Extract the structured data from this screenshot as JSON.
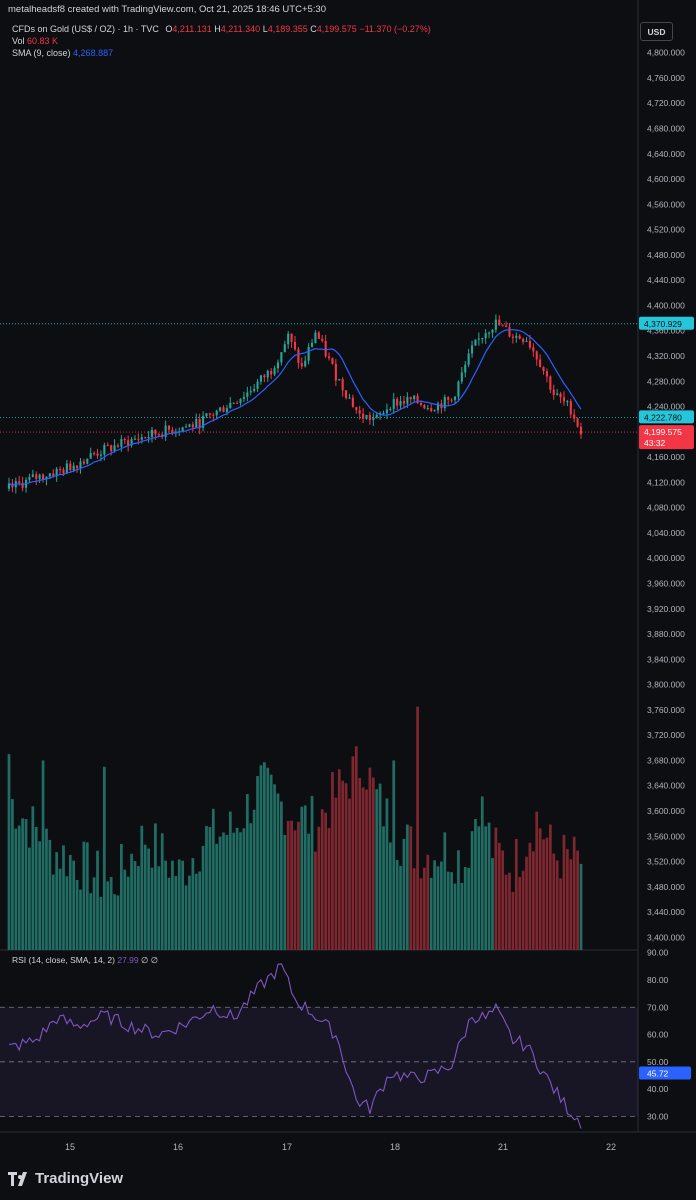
{
  "credit": "metalheadsf8 created with TradingView.com, Oct 21, 2025 18:46 UTC+5:30",
  "symbol": {
    "title": "CFDs on Gold (US$ / OZ) · 1h · TVC",
    "open_label": "O",
    "open": "4,211.131",
    "high_label": "H",
    "high": "4,211.340",
    "low_label": "L",
    "low": "4,189.355",
    "close_label": "C",
    "close": "4,199.575",
    "change": "−11.370 (−0.27%)"
  },
  "volume": {
    "label": "Vol",
    "value": "60.83 K"
  },
  "sma": {
    "label": "SMA (9, close)",
    "value": "4,268.887"
  },
  "rsi": {
    "label": "RSI (14, close, SMA, 14, 2)",
    "value": "27.99",
    "extra": "∅ ∅"
  },
  "currency_button": "USD",
  "logo_text": "TradingView",
  "colors": {
    "up": "#26a69a",
    "down": "#f23645",
    "sma": "#2962ff",
    "rsi": "#7e57c2",
    "background": "#0d0e12"
  },
  "chart_data": {
    "type": "candlestick",
    "interval": "1h",
    "x_tick_labels": [
      "15",
      "16",
      "17",
      "18",
      "21",
      "22"
    ],
    "price_axis": {
      "ticks": [
        "4,800.000",
        "4,760.000",
        "4,720.000",
        "4,680.000",
        "4,640.000",
        "4,600.000",
        "4,560.000",
        "4,520.000",
        "4,480.000",
        "4,440.000",
        "4,400.000",
        "4,360.000",
        "4,320.000",
        "4,280.000",
        "4,240.000",
        "4,200.000",
        "4,160.000",
        "4,120.000",
        "4,080.000",
        "4,040.000",
        "4,000.000",
        "3,960.000",
        "3,920.000",
        "3,880.000",
        "3,840.000",
        "3,800.000",
        "3,760.000",
        "3,720.000",
        "3,680.000",
        "3,640.000",
        "3,600.000",
        "3,560.000",
        "3,520.000",
        "3,480.000",
        "3,440.000",
        "3,400.000"
      ],
      "range": [
        3380,
        4820
      ]
    },
    "price_labels": [
      {
        "text": "4,370.929",
        "price": 4370.929,
        "color": "#26c6da",
        "line": "dotted"
      },
      {
        "text": "4,222.780",
        "price": 4222.78,
        "color": "#26c6da",
        "line": "dotted"
      },
      {
        "text": "4,199.575",
        "price": 4199.575,
        "sub": "43:32",
        "color": "#f23645",
        "line": "dotted"
      }
    ],
    "rsi_axis": {
      "ticks": [
        "90.00",
        "80.00",
        "70.00",
        "60.00",
        "50.00",
        "40.00",
        "30.00"
      ],
      "range": [
        25,
        91
      ],
      "band": [
        30,
        70
      ],
      "mid": 50
    },
    "rsi_label": "45.72",
    "rsi_label_value": 45.72,
    "anchors": {
      "price": [
        [
          0,
          4110
        ],
        [
          8,
          4128
        ],
        [
          16,
          4140
        ],
        [
          25,
          4165
        ],
        [
          35,
          4185
        ],
        [
          45,
          4200
        ],
        [
          55,
          4212
        ],
        [
          62,
          4235
        ],
        [
          70,
          4262
        ],
        [
          77,
          4298
        ],
        [
          82,
          4350
        ],
        [
          86,
          4300
        ],
        [
          90,
          4358
        ],
        [
          96,
          4290
        ],
        [
          103,
          4225
        ],
        [
          108,
          4220
        ],
        [
          112,
          4245
        ],
        [
          118,
          4250
        ],
        [
          124,
          4240
        ],
        [
          130,
          4250
        ],
        [
          136,
          4330
        ],
        [
          140,
          4360
        ],
        [
          143,
          4372
        ],
        [
          148,
          4352
        ],
        [
          152,
          4348
        ],
        [
          156,
          4310
        ],
        [
          160,
          4260
        ],
        [
          165,
          4236
        ],
        [
          168,
          4199.575
        ]
      ],
      "volume": [
        [
          0,
          3620
        ],
        [
          12,
          3540
        ],
        [
          20,
          3520
        ],
        [
          30,
          3480
        ],
        [
          40,
          3560
        ],
        [
          50,
          3500
        ],
        [
          58,
          3560
        ],
        [
          66,
          3570
        ],
        [
          74,
          3640
        ],
        [
          82,
          3600
        ],
        [
          90,
          3580
        ],
        [
          98,
          3640
        ],
        [
          104,
          3680
        ],
        [
          108,
          3620
        ],
        [
          114,
          3560
        ],
        [
          122,
          3530
        ],
        [
          128,
          3540
        ],
        [
          134,
          3520
        ],
        [
          138,
          3620
        ],
        [
          142,
          3540
        ],
        [
          148,
          3510
        ],
        [
          155,
          3590
        ],
        [
          160,
          3530
        ],
        [
          168,
          3520
        ]
      ],
      "rsi": [
        [
          0,
          55
        ],
        [
          8,
          58
        ],
        [
          14,
          66
        ],
        [
          20,
          63
        ],
        [
          28,
          67
        ],
        [
          36,
          63
        ],
        [
          44,
          60
        ],
        [
          52,
          64
        ],
        [
          60,
          70
        ],
        [
          66,
          66
        ],
        [
          74,
          78
        ],
        [
          80,
          85
        ],
        [
          84,
          73
        ],
        [
          90,
          67
        ],
        [
          96,
          60
        ],
        [
          102,
          36
        ],
        [
          106,
          33
        ],
        [
          112,
          46
        ],
        [
          118,
          44
        ],
        [
          124,
          45
        ],
        [
          130,
          49
        ],
        [
          136,
          67
        ],
        [
          140,
          66
        ],
        [
          143,
          69
        ],
        [
          148,
          58
        ],
        [
          152,
          56
        ],
        [
          156,
          48
        ],
        [
          160,
          40
        ],
        [
          164,
          33
        ],
        [
          168,
          28
        ]
      ]
    }
  }
}
